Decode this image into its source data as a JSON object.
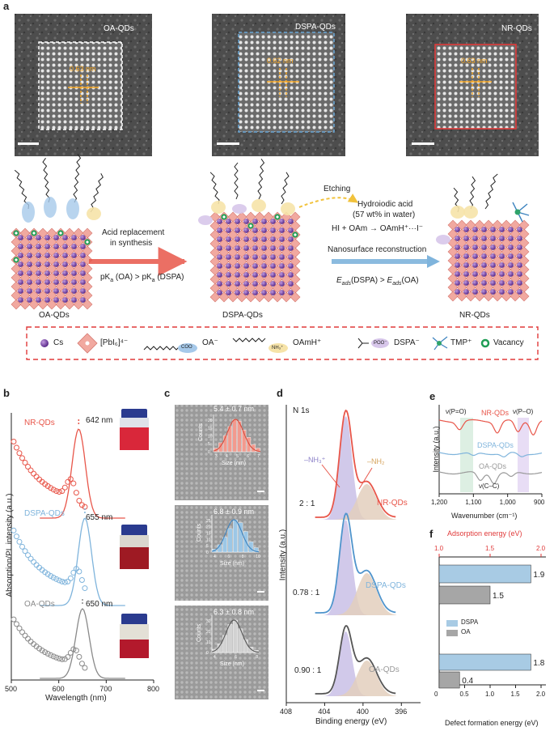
{
  "panels": {
    "a": "a",
    "b": "b",
    "c": "c",
    "d": "d",
    "e": "e",
    "f": "f"
  },
  "tem": [
    {
      "label": "OA-QDs",
      "spacing": "0.63 nm",
      "box_color": "#ffffff"
    },
    {
      "label": "DSPA-QDs",
      "spacing": "0.62 nm",
      "box_color": "#6aa8d8"
    },
    {
      "label": "NR-QDs",
      "spacing": "0.63 nm",
      "box_color": "#e03a3a"
    }
  ],
  "schematic": {
    "step1_line1": "Acid replacement",
    "step1_line2": "in synthesis",
    "pka_left": "pK",
    "pka_sub": "a",
    "pka_oa": " (OA) > ",
    "pka_dspa": " (DSPA)",
    "etching": "Etching",
    "acid_line1": "Hydroiodic acid",
    "acid_line2": "(57 wt% in water)",
    "reaction": "HI + OAm → OAmH⁺···I⁻",
    "reconstruction": "Nanosurface reconstruction",
    "eads_left": "E",
    "eads_sub": "ads",
    "eads_dspa": "(DSPA) > ",
    "eads_oa": "(OA)",
    "qd_labels": [
      "OA-QDs",
      "DSPA-QDs",
      "NR-QDs"
    ],
    "ligand_labels": {
      "coo": "COO⁻",
      "nh3": "NH₃⁺",
      "nh3s": "NH₃⁺"
    }
  },
  "legend": {
    "cs": "Cs",
    "pbi6": "[PbI₆]⁴⁻",
    "oa": "OA⁻",
    "oamh": "OAmH⁺",
    "dspa": "DSPA⁻",
    "tmp": "TMP⁺",
    "vacancy": "Vacancy",
    "coo_tag": "COO",
    "nh3_tag": "NH₃⁺",
    "poo_tag": "POO⁻"
  },
  "panel_b": {
    "ylabel": "Absorption/PL intensity (a.u.)",
    "xlabel": "Wavelength (nm)",
    "ticks": [
      "500",
      "600",
      "700",
      "800"
    ],
    "series": [
      {
        "name": "NR-QDs",
        "peak": "642 nm",
        "color": "#e8564a"
      },
      {
        "name": "DSPA-QDs",
        "peak": "655 nm",
        "color": "#7fb4dc"
      },
      {
        "name": "OA-QDs",
        "peak": "650 nm",
        "color": "#8a8a8a"
      }
    ]
  },
  "panel_c": {
    "histograms": [
      {
        "size": "5.4 ± 0.7 nm",
        "color": "#f29a8e",
        "line": "#d94c3c",
        "yticks": [
          "0",
          "5",
          "10",
          "15",
          "20"
        ],
        "xticks": [
          "3",
          "4",
          "5",
          "6",
          "7"
        ]
      },
      {
        "size": "6.8 ± 0.9 nm",
        "color": "#9cc7e6",
        "line": "#3d83bf",
        "yticks": [
          "0",
          "5",
          "10",
          "15",
          "20",
          "25"
        ],
        "xticks": [
          "4",
          "6",
          "8",
          "10"
        ]
      },
      {
        "size": "6.3 ± 0.8 nm",
        "color": "#d2d2d2",
        "line": "#555555",
        "yticks": [
          "0",
          "10",
          "20",
          "30"
        ],
        "xticks": [
          "4",
          "6",
          "8"
        ]
      }
    ],
    "ylabel": "Counts",
    "xlabel": "Size (nm)"
  },
  "panel_d": {
    "title": "N 1s",
    "nh3_label": "–NH₃⁺",
    "nh2_label": "–NH₂",
    "ratios": [
      "2 : 1",
      "0.78 : 1",
      "0.90 : 1"
    ],
    "series": [
      "NR-QDs",
      "DSPA-QDs",
      "OA-QDs"
    ],
    "ylabel": "Intensity (a.u.)",
    "xlabel": "Binding energy (eV)",
    "ticks": [
      "408",
      "404",
      "400",
      "396"
    ]
  },
  "panel_e": {
    "v_po_double": "ν(P=O)",
    "v_po": "ν(P–O)",
    "v_cc": "ν(C–C)",
    "series": [
      {
        "name": "NR-QDs",
        "color": "#e8564a"
      },
      {
        "name": "DSPA-QDs",
        "color": "#7fb4dc"
      },
      {
        "name": "OA-QDs",
        "color": "#9a9a9a"
      }
    ],
    "ylabel": "Intensity (a.u.)",
    "xlabel": "Wavenumber (cm⁻¹)",
    "ticks": [
      "1,200",
      "1,100",
      "1,000",
      "900"
    ]
  },
  "panel_f": {
    "top_axis_label": "Adsorption energy (eV)",
    "bottom_axis_label": "Defect formation energy (eV)",
    "top_ticks": [
      "1.0",
      "1.5",
      "2.0"
    ],
    "bottom_ticks": [
      "0",
      "0.5",
      "1.0",
      "1.5",
      "2.0"
    ],
    "legend": [
      {
        "name": "DSPA",
        "color": "#a8cbe4"
      },
      {
        "name": "OA",
        "color": "#a6a6a6"
      }
    ],
    "adsorption": [
      {
        "series": "DSPA",
        "value": 1.9,
        "label": "1.9"
      },
      {
        "series": "OA",
        "value": 1.5,
        "label": "1.5"
      }
    ],
    "defect": [
      {
        "series": "DSPA",
        "value": 1.8,
        "label": "1.8"
      },
      {
        "series": "OA",
        "value": 0.4,
        "label": "0.4"
      }
    ]
  }
}
